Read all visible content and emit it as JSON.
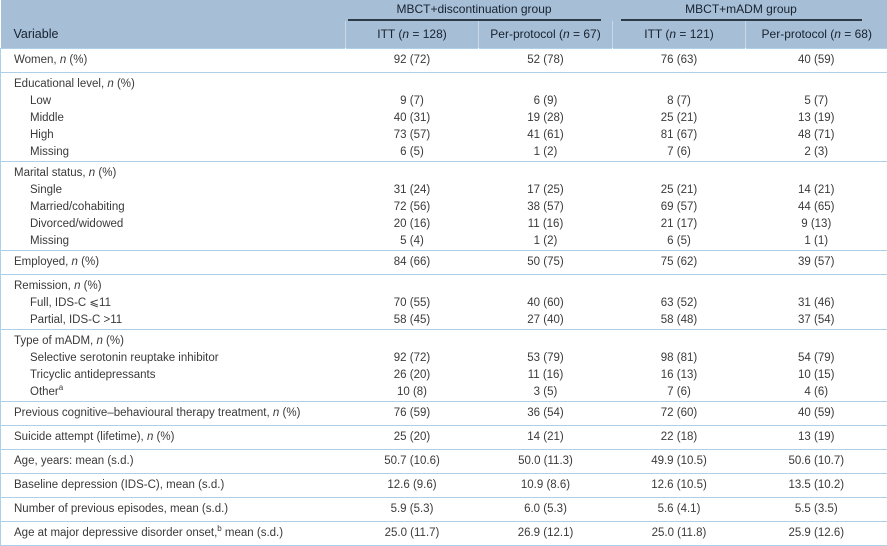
{
  "colors": {
    "header_bg": "#a7bed7",
    "divider": "#aecfe8",
    "group_underline": "#2d3a47",
    "text": "#3a3a3a",
    "header_text": "#16222e"
  },
  "table": {
    "variable_header": "Variable",
    "groups": [
      {
        "label": "MBCT+discontinuation group",
        "cols": [
          "ITT (*n* = 128)",
          "Per-protocol (*n* = 67)"
        ]
      },
      {
        "label": "MBCT+mADM group",
        "cols": [
          "ITT (*n* = 121)",
          "Per-protocol (*n* = 68)"
        ]
      }
    ],
    "sections": [
      {
        "rows": [
          {
            "label": "Women, *n* (%)",
            "indent": 0,
            "values": [
              "92 (72)",
              "52 (78)",
              "76 (63)",
              "40 (59)"
            ]
          }
        ]
      },
      {
        "rows": [
          {
            "label": "Educational level, *n* (%)",
            "indent": 0,
            "values": [
              "",
              "",
              "",
              ""
            ]
          },
          {
            "label": "Low",
            "indent": 1,
            "values": [
              "9 (7)",
              "6 (9)",
              "8 (7)",
              "5 (7)"
            ]
          },
          {
            "label": "Middle",
            "indent": 1,
            "values": [
              "40 (31)",
              "19 (28)",
              "25 (21)",
              "13 (19)"
            ]
          },
          {
            "label": "High",
            "indent": 1,
            "values": [
              "73 (57)",
              "41 (61)",
              "81 (67)",
              "48 (71)"
            ]
          },
          {
            "label": "Missing",
            "indent": 1,
            "values": [
              "6 (5)",
              "1 (2)",
              "7 (6)",
              "2 (3)"
            ]
          }
        ]
      },
      {
        "rows": [
          {
            "label": "Marital status, *n* (%)",
            "indent": 0,
            "values": [
              "",
              "",
              "",
              ""
            ]
          },
          {
            "label": "Single",
            "indent": 1,
            "values": [
              "31 (24)",
              "17 (25)",
              "25 (21)",
              "14 (21)"
            ]
          },
          {
            "label": "Married/cohabiting",
            "indent": 1,
            "values": [
              "72 (56)",
              "38 (57)",
              "69 (57)",
              "44 (65)"
            ]
          },
          {
            "label": "Divorced/widowed",
            "indent": 1,
            "values": [
              "20 (16)",
              "11 (16)",
              "21 (17)",
              "9 (13)"
            ]
          },
          {
            "label": "Missing",
            "indent": 1,
            "values": [
              "5 (4)",
              "1 (2)",
              "6 (5)",
              "1 (1)"
            ]
          }
        ]
      },
      {
        "rows": [
          {
            "label": "Employed, *n* (%)",
            "indent": 0,
            "values": [
              "84 (66)",
              "50 (75)",
              "75 (62)",
              "39 (57)"
            ]
          }
        ]
      },
      {
        "rows": [
          {
            "label": "Remission, *n* (%)",
            "indent": 0,
            "values": [
              "",
              "",
              "",
              ""
            ]
          },
          {
            "label": "Full, IDS-C ⩽11",
            "indent": 1,
            "values": [
              "70 (55)",
              "40 (60)",
              "63 (52)",
              "31 (46)"
            ]
          },
          {
            "label": "Partial, IDS-C >11",
            "indent": 1,
            "values": [
              "58 (45)",
              "27 (40)",
              "58 (48)",
              "37 (54)"
            ]
          }
        ]
      },
      {
        "rows": [
          {
            "label": "Type of mADM, *n* (%)",
            "indent": 0,
            "values": [
              "",
              "",
              "",
              ""
            ]
          },
          {
            "label": "Selective serotonin reuptake inhibitor",
            "indent": 1,
            "values": [
              "92 (72)",
              "53 (79)",
              "98 (81)",
              "54 (79)"
            ]
          },
          {
            "label": "Tricyclic antidepressants",
            "indent": 1,
            "values": [
              "26 (20)",
              "11 (16)",
              "16 (13)",
              "10 (15)"
            ]
          },
          {
            "label": "Other^a^",
            "indent": 1,
            "values": [
              "10 (8)",
              "3 (5)",
              "7 (6)",
              "4 (6)"
            ]
          }
        ]
      },
      {
        "rows": [
          {
            "label": "Previous cognitive–behavioural therapy treatment, *n* (%)",
            "indent": 0,
            "values": [
              "76 (59)",
              "36 (54)",
              "72 (60)",
              "40 (59)"
            ]
          }
        ]
      },
      {
        "rows": [
          {
            "label": "Suicide attempt (lifetime), *n* (%)",
            "indent": 0,
            "values": [
              "25 (20)",
              "14 (21)",
              "22 (18)",
              "13 (19)"
            ]
          }
        ]
      },
      {
        "rows": [
          {
            "label": "Age, years: mean (s.d.)",
            "indent": 0,
            "values": [
              "50.7 (10.6)",
              "50.0 (11.3)",
              "49.9 (10.5)",
              "50.6 (10.7)"
            ]
          }
        ]
      },
      {
        "rows": [
          {
            "label": "Baseline depression (IDS-C), mean (s.d.)",
            "indent": 0,
            "values": [
              "12.6 (9.6)",
              "10.9 (8.6)",
              "12.6 (10.5)",
              "13.5 (10.2)"
            ]
          }
        ]
      },
      {
        "rows": [
          {
            "label": "Number of previous episodes, mean (s.d.)",
            "indent": 0,
            "values": [
              "5.9 (5.3)",
              "6.0 (5.3)",
              "5.6 (4.1)",
              "5.5 (3.5)"
            ]
          }
        ]
      },
      {
        "rows": [
          {
            "label": "Age at major depressive disorder onset,^b^ mean (s.d.)",
            "indent": 0,
            "values": [
              "25.0 (11.7)",
              "26.9 (12.1)",
              "25.0 (11.8)",
              "25.9 (12.6)"
            ]
          }
        ]
      }
    ]
  }
}
